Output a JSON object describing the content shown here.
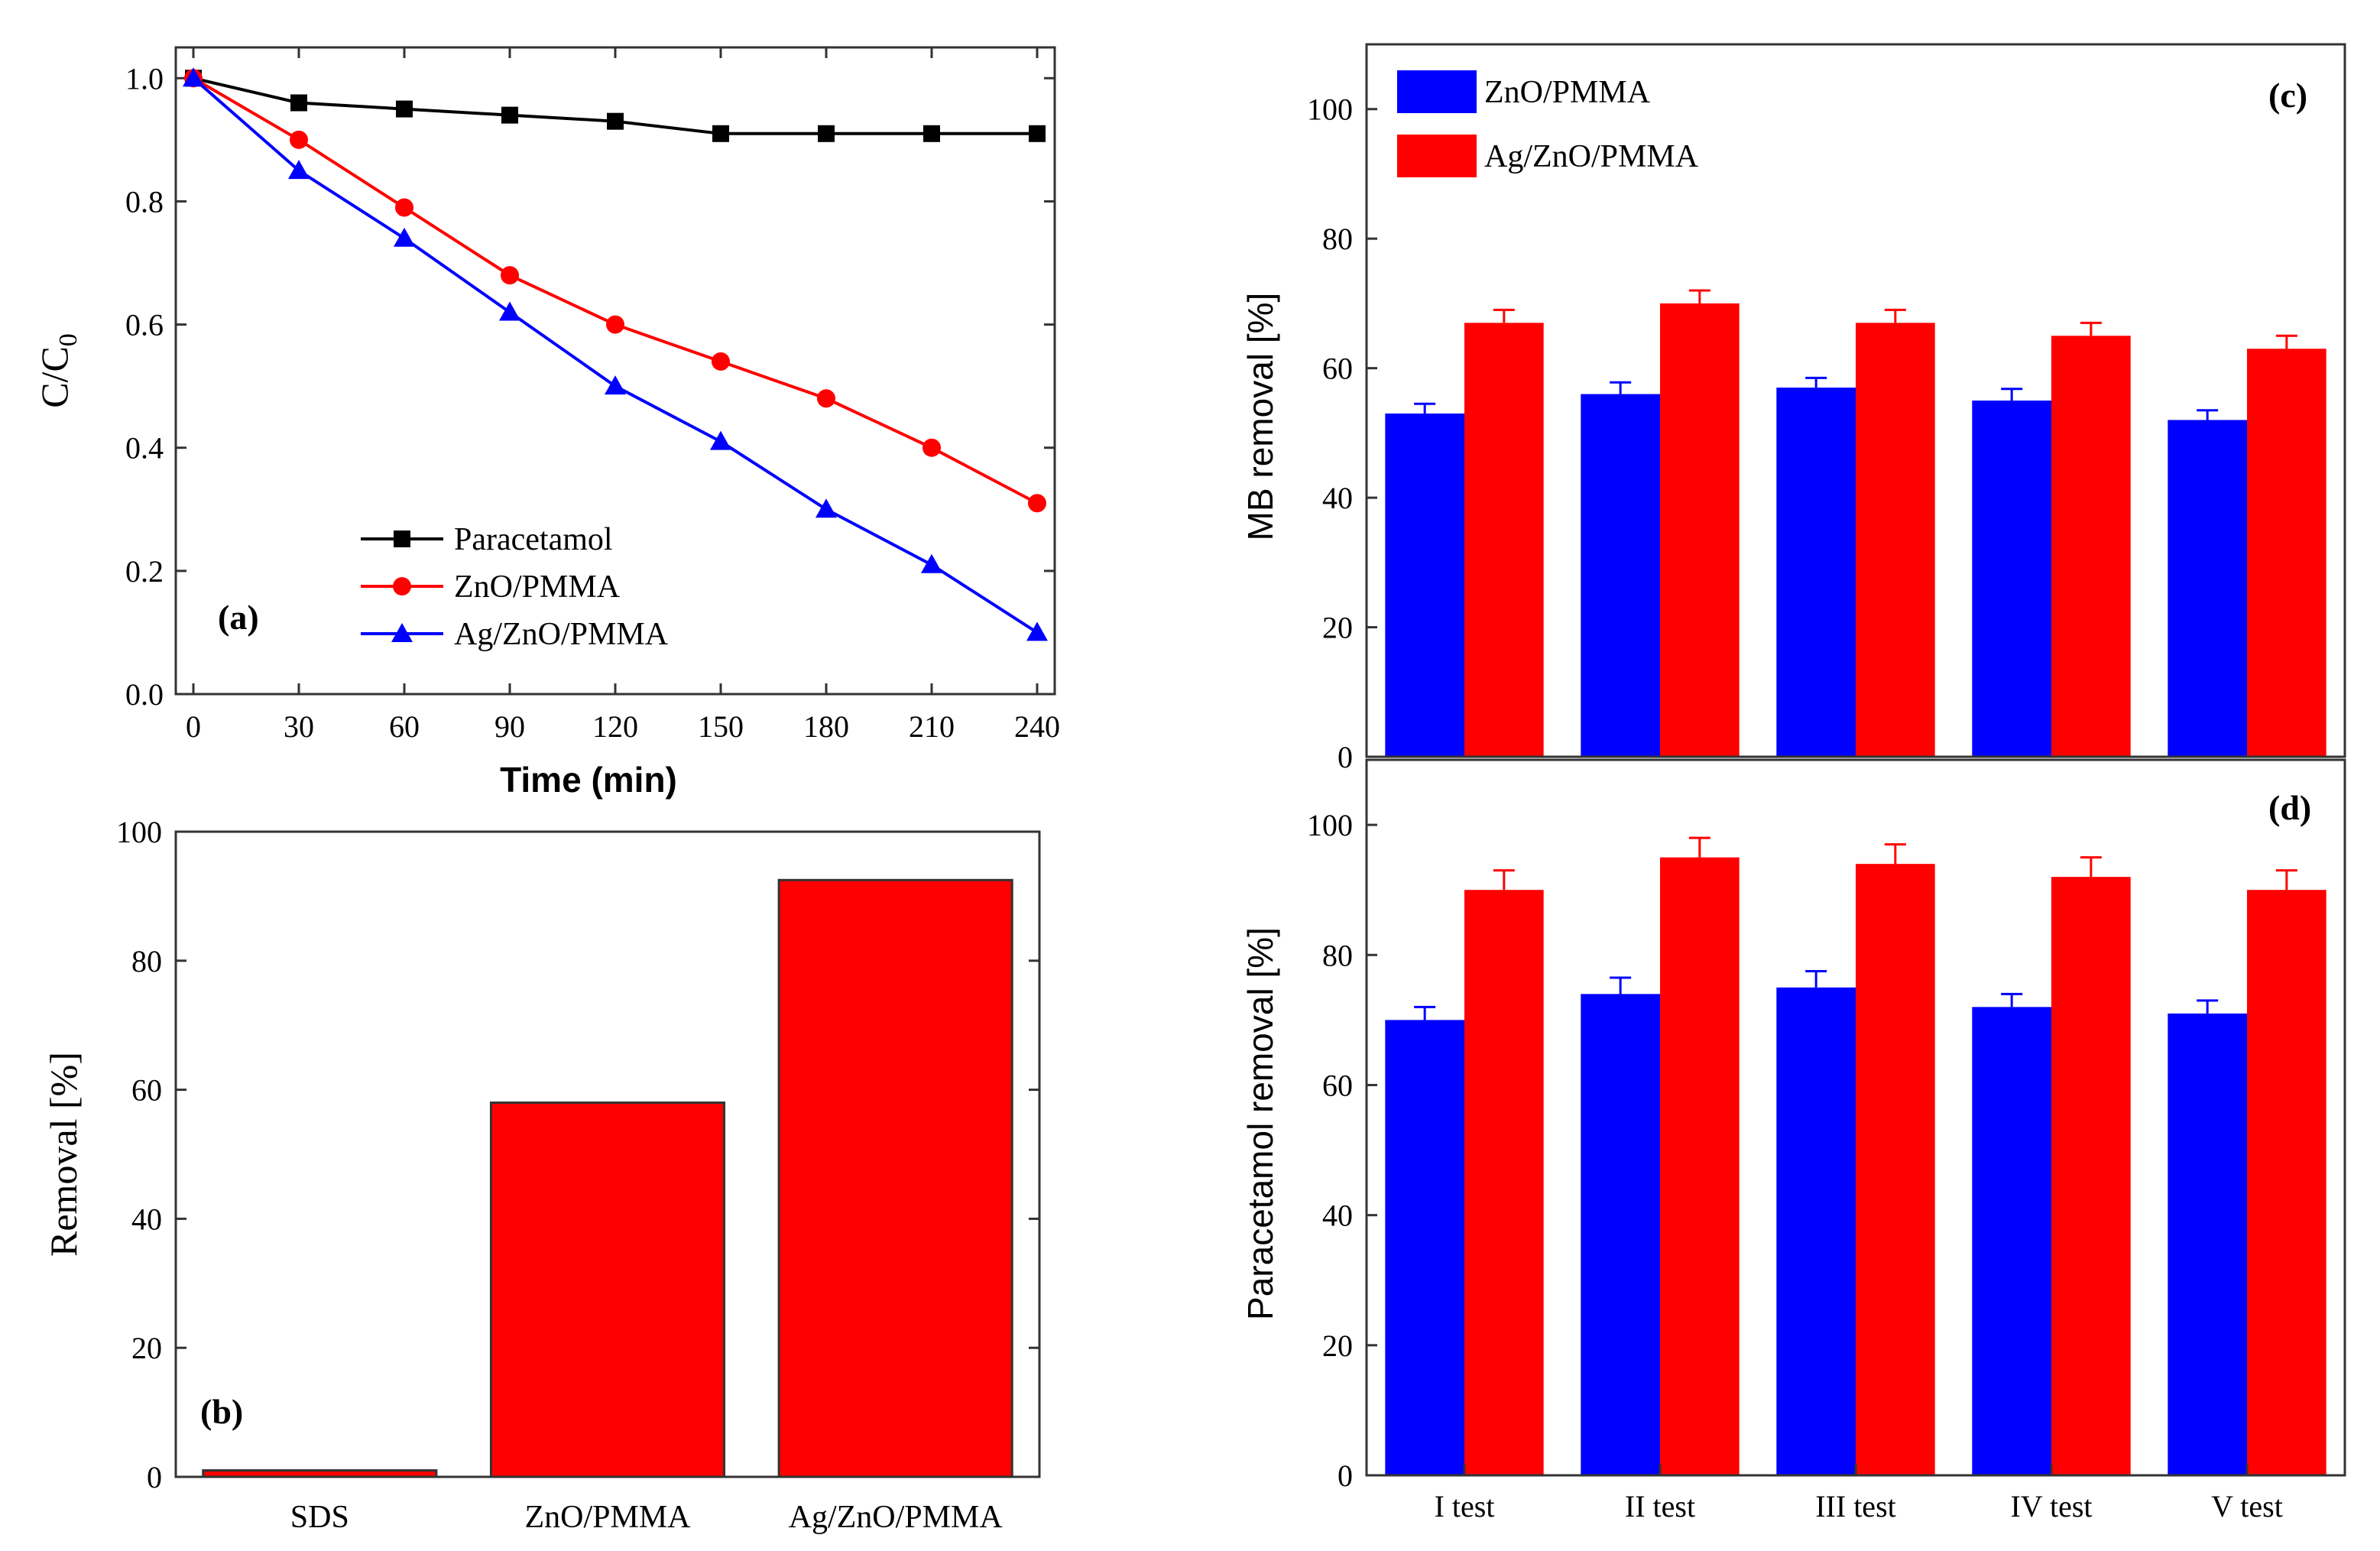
{
  "colors": {
    "black": "#000000",
    "red": "#ff0000",
    "blue": "#0000ff",
    "frame": "#333333"
  },
  "chart_data": [
    {
      "panel": "(a)",
      "type": "line",
      "xlabel": "Time (min)",
      "ylabel_main": "C/C",
      "ylabel_sub": "0",
      "xlim": [
        -5,
        245
      ],
      "ylim": [
        0,
        1.05
      ],
      "xticks": [
        0,
        30,
        60,
        90,
        120,
        150,
        180,
        210,
        240
      ],
      "xtick_labels": [
        "0",
        "30",
        "60",
        "90",
        "120",
        "150",
        "180",
        "210",
        "240"
      ],
      "yticks": [
        0,
        0.2,
        0.4,
        0.6,
        0.8,
        1.0
      ],
      "ytick_labels": [
        "0.0",
        "0.2",
        "0.4",
        "0.6",
        "0.8",
        "1.0"
      ],
      "legend_position": "bottom-center",
      "x": [
        0,
        30,
        60,
        90,
        120,
        150,
        180,
        210,
        240
      ],
      "series": [
        {
          "name": "Paracetamol",
          "color": "#000000",
          "marker": "square",
          "values": [
            1.0,
            0.96,
            0.95,
            0.94,
            0.93,
            0.91,
            0.91,
            0.91,
            0.91
          ]
        },
        {
          "name": "ZnO/PMMA",
          "color": "#ff0000",
          "marker": "circle",
          "values": [
            1.0,
            0.9,
            0.79,
            0.68,
            0.6,
            0.54,
            0.48,
            0.4,
            0.31
          ]
        },
        {
          "name": "Ag/ZnO/PMMA",
          "color": "#0000ff",
          "marker": "triangle",
          "values": [
            1.0,
            0.85,
            0.74,
            0.62,
            0.5,
            0.41,
            0.3,
            0.21,
            0.1
          ]
        }
      ]
    },
    {
      "panel": "(b)",
      "type": "bar",
      "ylabel": "Removal [%]",
      "ylim": [
        0,
        100
      ],
      "yticks": [
        0,
        20,
        40,
        60,
        80,
        100
      ],
      "ytick_labels": [
        "0",
        "20",
        "40",
        "60",
        "80",
        "100"
      ],
      "categories": [
        "SDS",
        "ZnO/PMMA",
        "Ag/ZnO/PMMA"
      ],
      "values": [
        1,
        58,
        92.5
      ],
      "color": "#ff0000"
    },
    {
      "panel": "(c)",
      "type": "bar",
      "ylabel": "MB removal [%]",
      "ylim": [
        0,
        110
      ],
      "yticks": [
        0,
        20,
        40,
        60,
        80,
        100
      ],
      "ytick_labels": [
        "0",
        "20",
        "40",
        "60",
        "80",
        "100"
      ],
      "categories": [
        "I test",
        "II test",
        "III test",
        "IV test",
        "V test"
      ],
      "legend_position": "top-left",
      "series": [
        {
          "name": "ZnO/PMMA",
          "color": "#0000ff",
          "values": [
            53,
            56,
            57,
            55,
            52
          ],
          "errors": [
            1.5,
            1.8,
            1.5,
            1.8,
            1.5
          ]
        },
        {
          "name": "Ag/ZnO/PMMA",
          "color": "#ff0000",
          "values": [
            67,
            70,
            67,
            65,
            63
          ],
          "errors": [
            2,
            2,
            2,
            2,
            2
          ]
        }
      ]
    },
    {
      "panel": "(d)",
      "type": "bar",
      "ylabel": "Paracetamol removal [%]",
      "ylim": [
        0,
        110
      ],
      "yticks": [
        0,
        20,
        40,
        60,
        80,
        100
      ],
      "ytick_labels": [
        "0",
        "20",
        "40",
        "60",
        "80",
        "100"
      ],
      "categories": [
        "I test",
        "II test",
        "III test",
        "IV test",
        "V test"
      ],
      "series": [
        {
          "name": "ZnO/PMMA",
          "color": "#0000ff",
          "values": [
            70,
            74,
            75,
            72,
            71
          ],
          "errors": [
            2,
            2.5,
            2.5,
            2,
            2
          ]
        },
        {
          "name": "Ag/ZnO/PMMA",
          "color": "#ff0000",
          "values": [
            90,
            95,
            94,
            92,
            90
          ],
          "errors": [
            3,
            3,
            3,
            3,
            3
          ]
        }
      ]
    }
  ]
}
